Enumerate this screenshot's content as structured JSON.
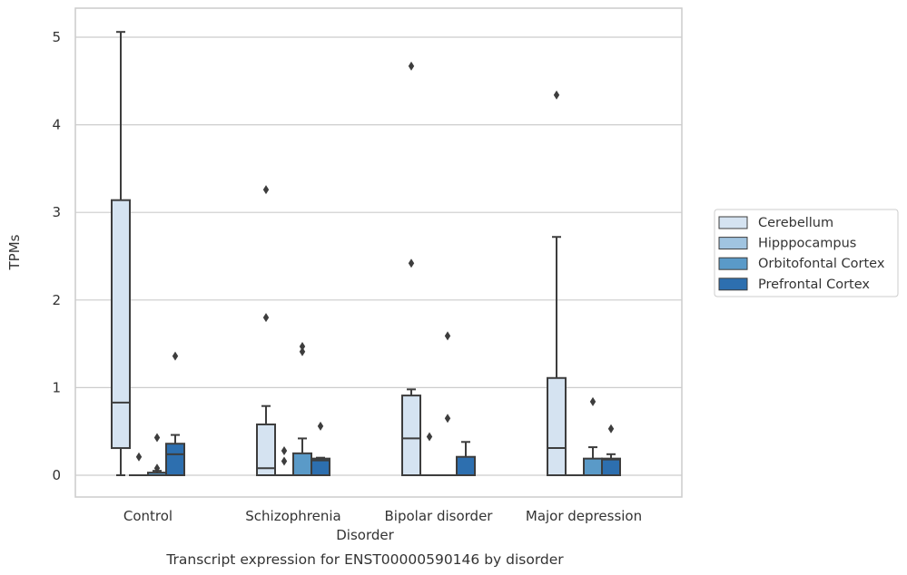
{
  "chart_data": {
    "type": "box",
    "caption": "Transcript expression for ENST00000590146 by disorder",
    "xlabel": "Disorder",
    "ylabel": "TPMs",
    "ylim": [
      -0.25,
      5.3
    ],
    "yticks": [
      0,
      1,
      2,
      3,
      4,
      5
    ],
    "grid": "horizontal",
    "legend_position": "right",
    "categories": [
      "Control",
      "Schizophrenia",
      "Bipolar disorder",
      "Major depression"
    ],
    "series": [
      {
        "name": "Cerebellum",
        "color": "#d5e3f1",
        "boxes": [
          {
            "whislo": 0.0,
            "q1": 0.31,
            "med": 0.83,
            "q3": 3.14,
            "whishi": 5.06,
            "fliers": []
          },
          {
            "whislo": 0.0,
            "q1": 0.0,
            "med": 0.08,
            "q3": 0.58,
            "whishi": 0.79,
            "fliers": [
              1.8,
              3.26
            ]
          },
          {
            "whislo": 0.0,
            "q1": 0.0,
            "med": 0.42,
            "q3": 0.91,
            "whishi": 0.98,
            "fliers": [
              2.42,
              4.67
            ]
          },
          {
            "whislo": 0.0,
            "q1": 0.0,
            "med": 0.31,
            "q3": 1.11,
            "whishi": 2.72,
            "fliers": [
              4.34
            ]
          }
        ]
      },
      {
        "name": "Hipppocampus",
        "color": "#a0c4e0",
        "boxes": [
          {
            "whislo": 0.0,
            "q1": 0.0,
            "med": 0.0,
            "q3": 0.0,
            "whishi": 0.0,
            "fliers": [
              0.21
            ]
          },
          {
            "whislo": 0.0,
            "q1": 0.0,
            "med": 0.0,
            "q3": 0.0,
            "whishi": 0.0,
            "fliers": [
              0.16,
              0.28
            ]
          },
          {
            "whislo": 0.0,
            "q1": 0.0,
            "med": 0.0,
            "q3": 0.0,
            "whishi": 0.0,
            "fliers": [
              0.44
            ]
          },
          {
            "whislo": 0.0,
            "q1": 0.0,
            "med": 0.0,
            "q3": 0.0,
            "whishi": 0.0,
            "fliers": []
          }
        ]
      },
      {
        "name": "Orbitofontal Cortex",
        "color": "#5a9ac8",
        "boxes": [
          {
            "whislo": 0.0,
            "q1": 0.0,
            "med": 0.0,
            "q3": 0.03,
            "whishi": 0.05,
            "fliers": [
              0.08,
              0.43
            ]
          },
          {
            "whislo": 0.0,
            "q1": 0.0,
            "med": 0.0,
            "q3": 0.25,
            "whishi": 0.42,
            "fliers": [
              1.41,
              1.47
            ]
          },
          {
            "whislo": 0.0,
            "q1": 0.0,
            "med": 0.0,
            "q3": 0.0,
            "whishi": 0.0,
            "fliers": [
              0.65,
              1.59
            ]
          },
          {
            "whislo": 0.0,
            "q1": 0.0,
            "med": 0.0,
            "q3": 0.19,
            "whishi": 0.32,
            "fliers": [
              0.84
            ]
          }
        ]
      },
      {
        "name": "Prefrontal Cortex",
        "color": "#2d6faf",
        "boxes": [
          {
            "whislo": 0.0,
            "q1": 0.0,
            "med": 0.24,
            "q3": 0.36,
            "whishi": 0.46,
            "fliers": [
              1.36
            ]
          },
          {
            "whislo": 0.0,
            "q1": 0.0,
            "med": 0.17,
            "q3": 0.19,
            "whishi": 0.2,
            "fliers": [
              0.56
            ]
          },
          {
            "whislo": 0.0,
            "q1": 0.0,
            "med": 0.0,
            "q3": 0.21,
            "whishi": 0.38,
            "fliers": []
          },
          {
            "whislo": 0.0,
            "q1": 0.0,
            "med": 0.18,
            "q3": 0.19,
            "whishi": 0.24,
            "fliers": [
              0.53
            ]
          }
        ]
      }
    ]
  }
}
